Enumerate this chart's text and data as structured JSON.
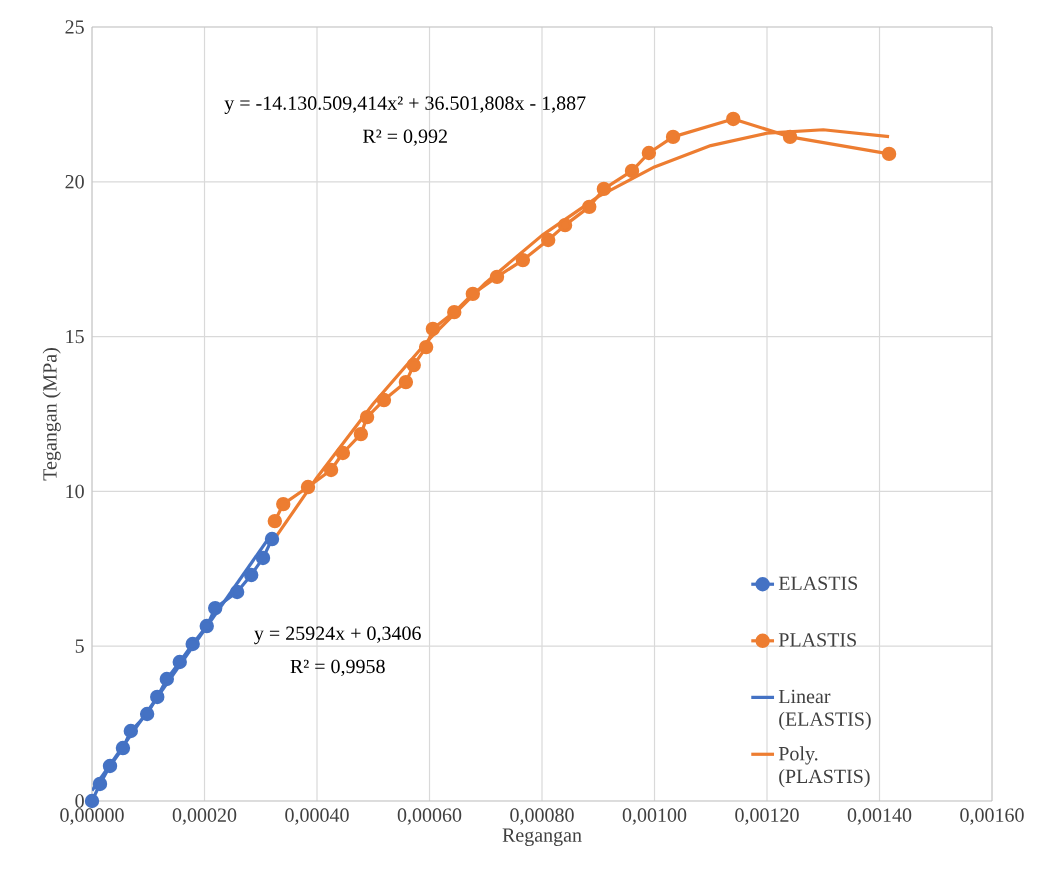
{
  "chart_data": {
    "type": "line",
    "xlabel": "Regangan",
    "ylabel": "Tegangan (MPa)",
    "xlim": [
      0,
      0.0016
    ],
    "ylim": [
      0,
      25
    ],
    "xticks": [
      {
        "value": 0,
        "label": "0,00000"
      },
      {
        "value": 0.0002,
        "label": "0,00020"
      },
      {
        "value": 0.0004,
        "label": "0,00040"
      },
      {
        "value": 0.0006,
        "label": "0,00060"
      },
      {
        "value": 0.0008,
        "label": "0,00080"
      },
      {
        "value": 0.001,
        "label": "0,00100"
      },
      {
        "value": 0.0012,
        "label": "0,00120"
      },
      {
        "value": 0.0014,
        "label": "0,00140"
      },
      {
        "value": 0.0016,
        "label": "0,00160"
      }
    ],
    "yticks": [
      0,
      5,
      10,
      15,
      20,
      25
    ],
    "grid": true,
    "legend": "right",
    "line_style": "solid",
    "series": [
      {
        "name": "ELASTIS",
        "color": "#4472c4",
        "marker": "circle",
        "x": [
          0,
          1.42e-05,
          3.2e-05,
          5.5e-05,
          6.9e-05,
          9.8e-05,
          0.000116,
          0.000133,
          0.000156,
          0.000179,
          0.000204,
          0.000219,
          0.000258,
          0.000283,
          0.000304,
          0.00032
        ],
        "values": [
          0,
          0.55,
          1.13,
          1.71,
          2.26,
          2.81,
          3.36,
          3.94,
          4.49,
          5.07,
          5.65,
          6.23,
          6.75,
          7.3,
          7.85,
          8.46
        ]
      },
      {
        "name": "PLASTIS",
        "color": "#ed7d31",
        "marker": "circle",
        "x": [
          0.000325,
          0.00034,
          0.000384,
          0.000425,
          0.000446,
          0.000478,
          0.000489,
          0.000519,
          0.000558,
          0.000572,
          0.000594,
          0.000606,
          0.000644,
          0.000677,
          0.00072,
          0.000766,
          0.000811,
          0.000841,
          0.000884,
          0.00091,
          0.00096,
          0.00099,
          0.001033,
          0.00114,
          0.001241,
          0.001417
        ],
        "values": [
          9.04,
          9.59,
          10.14,
          10.69,
          11.24,
          11.85,
          12.4,
          12.95,
          13.53,
          14.08,
          14.66,
          15.25,
          15.79,
          16.38,
          16.93,
          17.47,
          18.12,
          18.6,
          19.19,
          19.77,
          20.35,
          20.93,
          21.45,
          22.03,
          21.45,
          20.9
        ]
      },
      {
        "name": "Linear (ELASTIS)",
        "color": "#4472c4",
        "marker": "none",
        "x": [
          0,
          0.00032
        ],
        "values": [
          0.34,
          8.64
        ]
      },
      {
        "name": "Poly. (PLASTIS)",
        "color": "#ed7d31",
        "marker": "none",
        "x": [
          0.000325,
          0.0004,
          0.0005,
          0.0006,
          0.0007,
          0.0008,
          0.0009,
          0.001,
          0.0011,
          0.0012,
          0.0013,
          0.001417
        ],
        "values": [
          8.48,
          10.45,
          12.83,
          14.93,
          16.74,
          18.27,
          19.52,
          20.48,
          21.17,
          21.57,
          21.68,
          21.46
        ]
      }
    ],
    "annotations": [
      "y = -14.130.509,414x² + 36.501,808x - 1,887",
      "R² = 0,992",
      "y = 25924x + 0,3406",
      "R² = 0,9958"
    ]
  }
}
